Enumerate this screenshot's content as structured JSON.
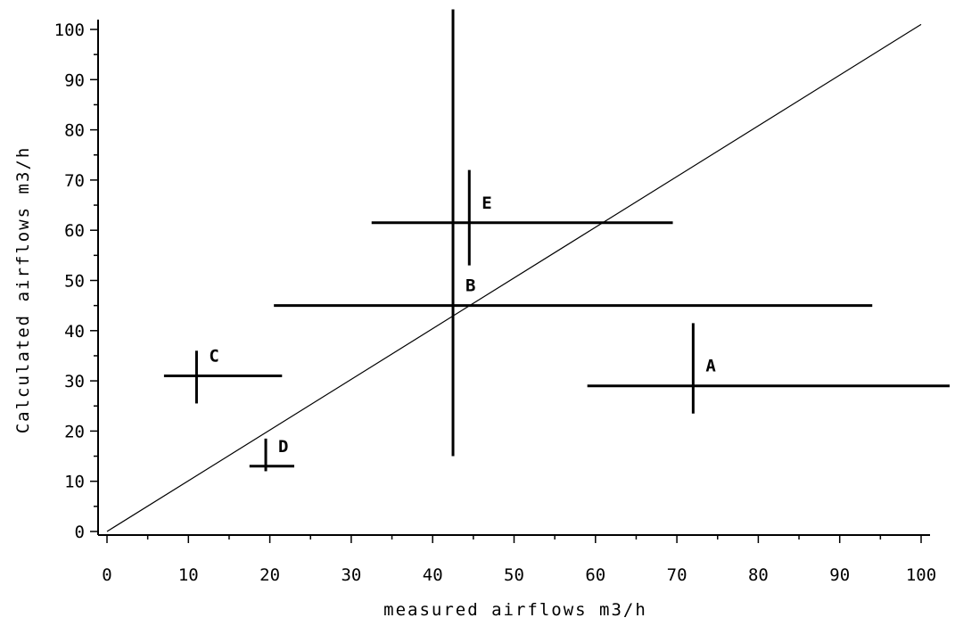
{
  "chart_data": {
    "type": "scatter",
    "title": "",
    "xlabel": "measured airflows m3/h",
    "ylabel": "Calculated airflows m3/h",
    "xlim": [
      0,
      100
    ],
    "ylim": [
      0,
      100
    ],
    "x_ticks": [
      "0",
      "10",
      "20",
      "30",
      "40",
      "50",
      "60",
      "70",
      "80",
      "90",
      "100"
    ],
    "y_ticks": [
      "0",
      "10",
      "20",
      "30",
      "40",
      "50",
      "60",
      "70",
      "80",
      "90",
      "100"
    ],
    "grid": false,
    "reference_line": {
      "from": [
        0,
        0
      ],
      "to": [
        100,
        101
      ]
    },
    "points": [
      {
        "label": "A",
        "x": 72,
        "y": 29,
        "x_err": [
          59,
          103.5
        ],
        "y_err": [
          23.5,
          41.5
        ]
      },
      {
        "label": "B",
        "x": 42.5,
        "y": 45,
        "x_err": [
          20.5,
          94
        ],
        "y_err": [
          15,
          104
        ]
      },
      {
        "label": "C",
        "x": 11,
        "y": 31,
        "x_err": [
          7,
          21.5
        ],
        "y_err": [
          25.5,
          36
        ]
      },
      {
        "label": "D",
        "x": 19.5,
        "y": 13,
        "x_err": [
          17.5,
          23
        ],
        "y_err": [
          12,
          18.5
        ]
      },
      {
        "label": "E",
        "x": 44.5,
        "y": 61.5,
        "x_err": [
          32.5,
          69.5
        ],
        "y_err": [
          53,
          72
        ]
      }
    ]
  }
}
